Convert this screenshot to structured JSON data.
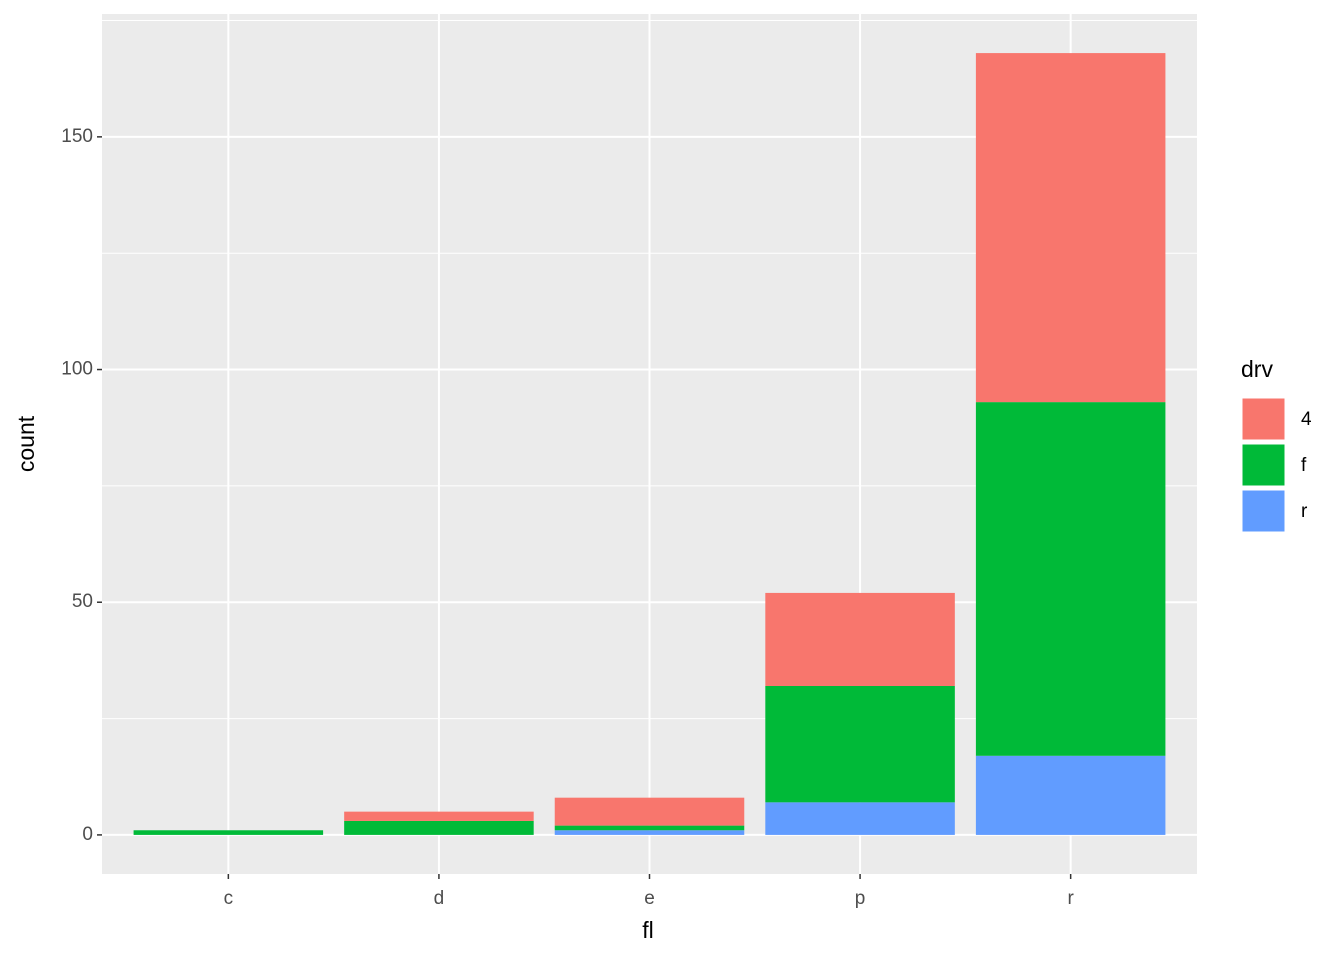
{
  "chart_data": {
    "type": "stacked-bar",
    "x_label": "fl",
    "y_label": "count",
    "categories": [
      "c",
      "d",
      "e",
      "p",
      "r"
    ],
    "legend_title": "drv",
    "series": [
      {
        "name": "4",
        "color": "#F8766D",
        "values": [
          0,
          2,
          6,
          20,
          75
        ]
      },
      {
        "name": "f",
        "color": "#00BA38",
        "values": [
          1,
          3,
          1,
          25,
          76
        ]
      },
      {
        "name": "r",
        "color": "#619CFF",
        "values": [
          0,
          0,
          1,
          7,
          17
        ]
      }
    ],
    "ylim": [
      -8.4,
      176.4
    ],
    "yticks": [
      0,
      50,
      100,
      150
    ],
    "yminor": [
      25,
      75,
      125,
      175
    ],
    "grid": true,
    "legend": "right"
  }
}
